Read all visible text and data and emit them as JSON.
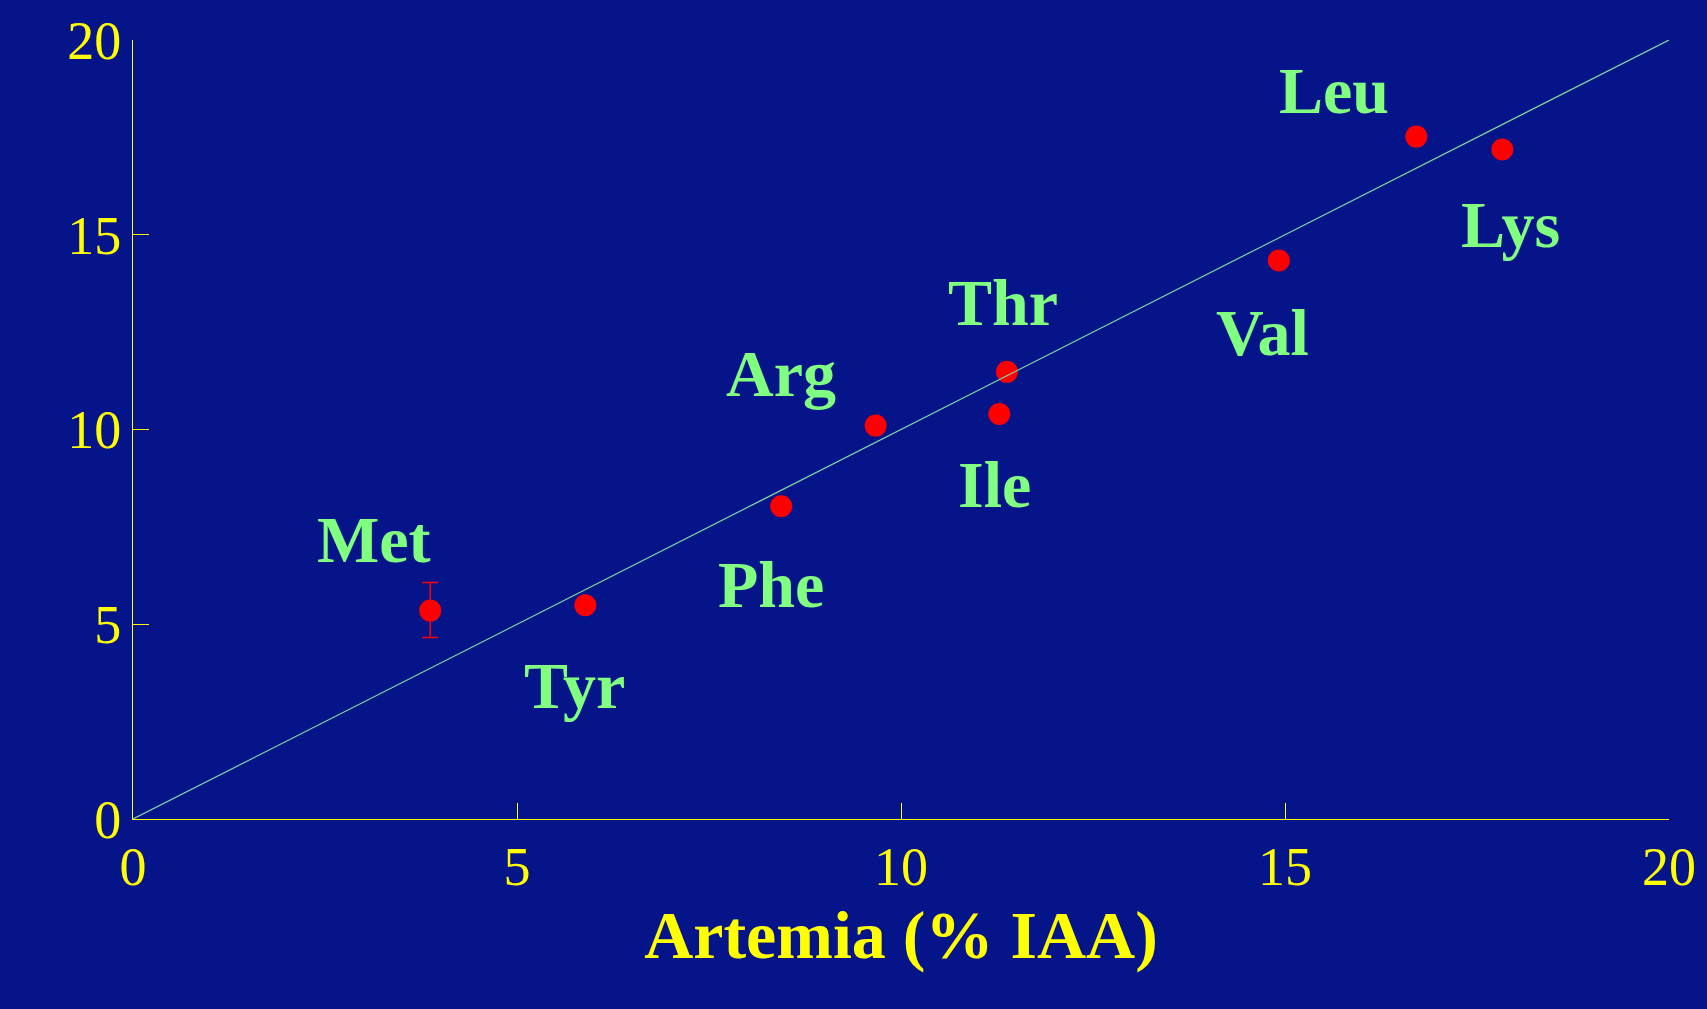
{
  "chart_data": {
    "type": "scatter",
    "xlabel": "Artemia (% IAA)",
    "x": [
      3.87,
      5.89,
      8.44,
      9.67,
      11.28,
      11.38,
      14.92,
      16.71,
      17.83
    ],
    "series": [
      {
        "color": "#ff0000",
        "marker": "circle",
        "values": [
          5.35,
          5.49,
          8.03,
          10.1,
          10.4,
          11.48,
          14.34,
          17.52,
          17.19
        ],
        "errors": [
          [
            4.66,
            6.07
          ],
          null,
          null,
          null,
          null,
          null,
          null,
          null,
          null
        ]
      },
      {
        "type": "line",
        "color": "#7fd8a0",
        "x": [
          0,
          20
        ],
        "values": [
          0,
          20
        ],
        "marker": "none",
        "line_style": "solid"
      }
    ],
    "annotations": [
      {
        "text": "Met",
        "x": 3.87,
        "y": 5.35
      },
      {
        "text": "Tyr",
        "x": 5.89,
        "y": 5.49
      },
      {
        "text": "Phe",
        "x": 8.44,
        "y": 8.03
      },
      {
        "text": "Arg",
        "x": 9.67,
        "y": 10.1
      },
      {
        "text": "Ile",
        "x": 11.28,
        "y": 10.4
      },
      {
        "text": "Thr",
        "x": 11.38,
        "y": 11.48
      },
      {
        "text": "Val",
        "x": 14.92,
        "y": 14.34
      },
      {
        "text": "Leu",
        "x": 16.71,
        "y": 17.52
      },
      {
        "text": "Lys",
        "x": 17.83,
        "y": 17.19
      }
    ],
    "xlim": [
      0,
      20
    ],
    "ylim": [
      0,
      20
    ],
    "xticks": [
      0,
      5,
      10,
      15,
      20
    ],
    "yticks": [
      0,
      5,
      10,
      15,
      20
    ],
    "grid": false,
    "legend": false
  }
}
